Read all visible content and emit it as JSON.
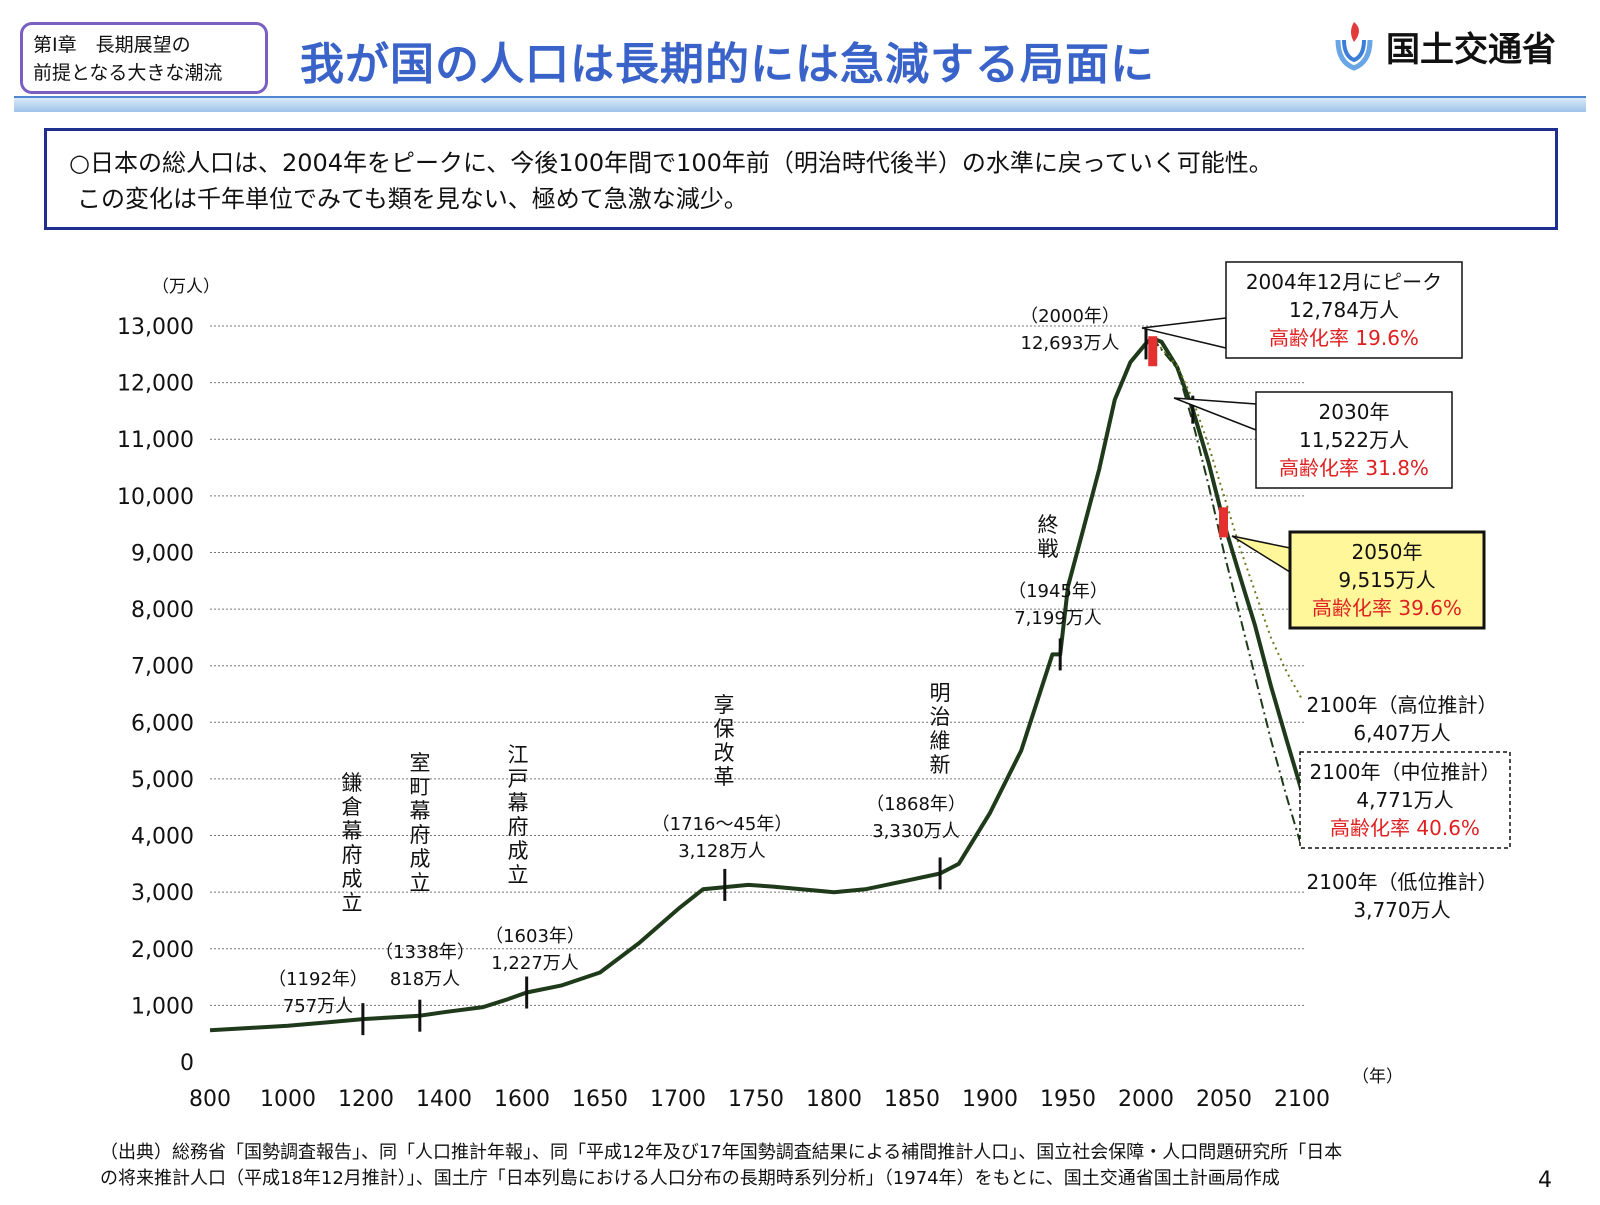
{
  "header": {
    "chapter_line1": "第Ⅰ章　長期展望の",
    "chapter_line2": "前提となる大きな潮流",
    "title": "我が国の人口は長期的には急減する局面に",
    "ministry": "国土交通省"
  },
  "summary": {
    "line1": "○日本の総人口は、2004年をピークに、今後100年間で100年前（明治時代後半）の水準に戻っていく可能性。",
    "line2": "この変化は千年単位でみても類を見ない、極めて急激な減少。"
  },
  "chart_data": {
    "type": "line",
    "y_unit": "（万人）",
    "x_unit": "（年）",
    "xlim": [
      800,
      2100
    ],
    "ylim": [
      0,
      13000
    ],
    "x_ticks": [
      800,
      1000,
      1200,
      1400,
      1600,
      1650,
      1700,
      1750,
      1800,
      1850,
      1900,
      1950,
      2000,
      2050,
      2100
    ],
    "y_ticks": [
      0,
      1000,
      2000,
      3000,
      4000,
      5000,
      6000,
      7000,
      8000,
      9000,
      10000,
      11000,
      12000,
      13000
    ],
    "y_tick_labels": [
      "0",
      "1,000",
      "2,000",
      "3,000",
      "4,000",
      "5,000",
      "6,000",
      "7,000",
      "8,000",
      "9,000",
      "10,000",
      "11,000",
      "12,000",
      "13,000"
    ],
    "grid": "horizontal dotted",
    "series": [
      {
        "key": "history",
        "style": "solid",
        "points": [
          [
            800,
            560
          ],
          [
            900,
            600
          ],
          [
            1000,
            640
          ],
          [
            1100,
            700
          ],
          [
            1192,
            757
          ],
          [
            1250,
            780
          ],
          [
            1338,
            818
          ],
          [
            1400,
            880
          ],
          [
            1500,
            970
          ],
          [
            1560,
            1100
          ],
          [
            1603,
            1227
          ],
          [
            1625,
            1350
          ],
          [
            1650,
            1580
          ],
          [
            1675,
            2100
          ],
          [
            1700,
            2700
          ],
          [
            1716,
            3050
          ],
          [
            1745,
            3128
          ],
          [
            1760,
            3100
          ],
          [
            1800,
            3000
          ],
          [
            1820,
            3050
          ],
          [
            1846,
            3200
          ],
          [
            1868,
            3330
          ],
          [
            1880,
            3500
          ],
          [
            1900,
            4400
          ],
          [
            1920,
            5500
          ],
          [
            1940,
            7200
          ],
          [
            1945,
            7199
          ],
          [
            1950,
            8400
          ],
          [
            1960,
            9430
          ],
          [
            1970,
            10470
          ],
          [
            1980,
            11700
          ],
          [
            1990,
            12360
          ],
          [
            2000,
            12693
          ],
          [
            2004,
            12784
          ]
        ]
      },
      {
        "key": "middle",
        "style": "solid",
        "points": [
          [
            2004,
            12784
          ],
          [
            2010,
            12720
          ],
          [
            2020,
            12270
          ],
          [
            2030,
            11522
          ],
          [
            2040,
            10600
          ],
          [
            2050,
            9515
          ],
          [
            2060,
            8600
          ],
          [
            2070,
            7700
          ],
          [
            2080,
            6650
          ],
          [
            2090,
            5700
          ],
          [
            2100,
            4771
          ]
        ]
      },
      {
        "key": "high",
        "style": "dotted",
        "points": [
          [
            2004,
            12784
          ],
          [
            2020,
            12300
          ],
          [
            2030,
            11700
          ],
          [
            2040,
            10900
          ],
          [
            2050,
            10000
          ],
          [
            2060,
            9100
          ],
          [
            2070,
            8300
          ],
          [
            2080,
            7500
          ],
          [
            2090,
            6900
          ],
          [
            2100,
            6407
          ]
        ]
      },
      {
        "key": "low",
        "style": "dash-dot",
        "points": [
          [
            2004,
            12784
          ],
          [
            2020,
            12250
          ],
          [
            2030,
            11300
          ],
          [
            2040,
            10200
          ],
          [
            2050,
            9000
          ],
          [
            2060,
            7900
          ],
          [
            2070,
            6800
          ],
          [
            2080,
            5700
          ],
          [
            2090,
            4700
          ],
          [
            2100,
            3770
          ]
        ]
      }
    ],
    "markers": [
      {
        "x": 1192,
        "y": 757,
        "event": [
          "鎌",
          "倉",
          "幕",
          "府",
          "成",
          "立"
        ],
        "year": "（1192年）",
        "pop": "757万人"
      },
      {
        "x": 1338,
        "y": 818,
        "event": [
          "室",
          "町",
          "幕",
          "府",
          "成",
          "立"
        ],
        "year": "（1338年）",
        "pop": "818万人"
      },
      {
        "x": 1603,
        "y": 1227,
        "event": [
          "江",
          "戸",
          "幕",
          "府",
          "成",
          "立"
        ],
        "year": "（1603年）",
        "pop": "1,227万人"
      },
      {
        "x": 1730,
        "y": 3128,
        "event": [
          "享",
          "保",
          "改",
          "革"
        ],
        "year": "（1716〜45年）",
        "pop": "3,128万人"
      },
      {
        "x": 1868,
        "y": 3330,
        "event": [
          "明",
          "治",
          "維",
          "新"
        ],
        "year": "（1868年）",
        "pop": "3,330万人"
      },
      {
        "x": 1945,
        "y": 7199,
        "event": [
          "終",
          "戦"
        ],
        "year": "（1945年）",
        "pop": "7,199万人"
      },
      {
        "x": 2000,
        "y": 12693,
        "event": [],
        "year": "（2000年）",
        "pop": "12,693万人"
      }
    ],
    "callouts": [
      {
        "key": "peak",
        "lines": [
          "2004年12月にピーク",
          "12,784万人"
        ],
        "aging": "高齢化率 19.6%",
        "highlight": false,
        "dashed": false
      },
      {
        "key": "y2030",
        "lines": [
          "2030年",
          "11,522万人"
        ],
        "aging": "高齢化率 31.8%",
        "highlight": false,
        "dashed": false
      },
      {
        "key": "y2050",
        "lines": [
          "2050年",
          "9,515万人"
        ],
        "aging": "高齢化率 39.6%",
        "highlight": true,
        "dashed": false
      },
      {
        "key": "high2100",
        "lines": [
          "2100年（高位推計）",
          "6,407万人"
        ],
        "aging": "",
        "highlight": false,
        "dashed": false
      },
      {
        "key": "mid2100",
        "lines": [
          "2100年（中位推計）",
          "4,771万人"
        ],
        "aging": "高齢化率 40.6%",
        "highlight": false,
        "dashed": true
      },
      {
        "key": "low2100",
        "lines": [
          "2100年（低位推計）",
          "3,770万人"
        ],
        "aging": "",
        "highlight": false,
        "dashed": false
      }
    ],
    "colors": {
      "line": "#1f3a1a",
      "highlight_box": "#fff79a",
      "aging_text": "#e02020",
      "peak_marker": "#e53030"
    }
  },
  "footer": {
    "source_line1": "（出典）総務省「国勢調査報告」、同「人口推計年報」、同「平成12年及び17年国勢調査結果による補間推計人口」、国立社会保障・人口問題研究所「日本",
    "source_line2": "の将来推計人口（平成18年12月推計）」、国土庁「日本列島における人口分布の長期時系列分析」（1974年）をもとに、国土交通省国土計画局作成",
    "page_number": "4"
  }
}
